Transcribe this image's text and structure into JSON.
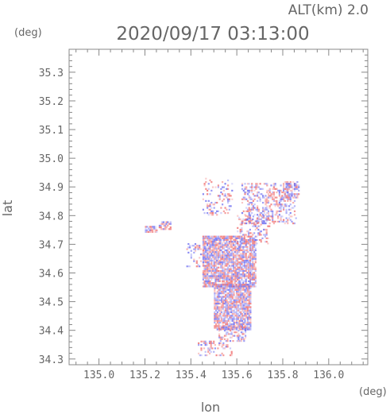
{
  "chart_data": {
    "type": "heatmap",
    "title": "2020/09/17 03:13:00",
    "altitude_label": "ALT(km) 2.0",
    "xlabel": "lon",
    "ylabel": "lat",
    "x_unit": "(deg)",
    "y_unit": "(deg)",
    "xlim": [
      134.87,
      136.17
    ],
    "ylim": [
      34.28,
      35.38
    ],
    "x_ticks": [
      "135.0",
      "135.2",
      "135.4",
      "135.6",
      "135.8",
      "136.0"
    ],
    "y_ticks": [
      "34.3",
      "34.4",
      "34.5",
      "34.6",
      "34.7",
      "34.8",
      "34.9",
      "35.0",
      "35.1",
      "35.2",
      "35.3"
    ],
    "grid": false,
    "colors": {
      "positive": "#f07070",
      "negative": "#6f6ff0",
      "axis": "#888888",
      "text": "#666666"
    },
    "regions": [
      {
        "lon": [
          135.45,
          135.68
        ],
        "lat": [
          34.55,
          34.73
        ],
        "density": 0.85
      },
      {
        "lon": [
          135.5,
          135.66
        ],
        "lat": [
          34.4,
          34.56
        ],
        "density": 0.85
      },
      {
        "lon": [
          135.52,
          135.64
        ],
        "lat": [
          34.36,
          34.41
        ],
        "density": 0.4
      },
      {
        "lon": [
          135.43,
          135.58
        ],
        "lat": [
          34.31,
          34.36
        ],
        "density": 0.3
      },
      {
        "lon": [
          135.62,
          135.86
        ],
        "lat": [
          34.77,
          34.91
        ],
        "density": 0.35
      },
      {
        "lon": [
          135.8,
          135.87
        ],
        "lat": [
          34.86,
          34.92
        ],
        "density": 0.7
      },
      {
        "lon": [
          135.45,
          135.58
        ],
        "lat": [
          34.8,
          34.93
        ],
        "density": 0.2
      },
      {
        "lon": [
          135.6,
          135.74
        ],
        "lat": [
          34.7,
          34.8
        ],
        "density": 0.3
      },
      {
        "lon": [
          135.2,
          135.25
        ],
        "lat": [
          34.74,
          34.76
        ],
        "density": 0.8
      },
      {
        "lon": [
          135.26,
          135.31
        ],
        "lat": [
          34.75,
          34.78
        ],
        "density": 0.6
      },
      {
        "lon": [
          135.38,
          135.45
        ],
        "lat": [
          34.62,
          34.7
        ],
        "density": 0.3
      }
    ]
  }
}
